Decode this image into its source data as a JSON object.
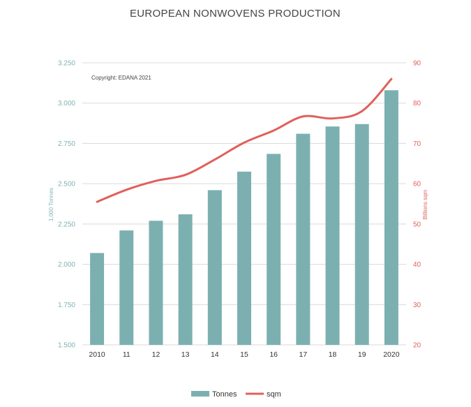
{
  "chart_data": {
    "type": "bar+line",
    "title": "EUROPEAN NONWOVENS PRODUCTION",
    "annotation": "Copyright: EDANA 2021",
    "categories": [
      "2010",
      "11",
      "12",
      "13",
      "14",
      "15",
      "16",
      "17",
      "18",
      "19",
      "2020"
    ],
    "series": [
      {
        "name": "Tonnes",
        "type": "bar",
        "axis": "left",
        "color": "#7cb0b0",
        "values": [
          2070,
          2210,
          2270,
          2310,
          2460,
          2575,
          2685,
          2810,
          2855,
          2870,
          3080
        ]
      },
      {
        "name": "sqm",
        "type": "line",
        "axis": "right",
        "color": "#e0605a",
        "values": [
          55.5,
          58.5,
          60.7,
          62.2,
          66,
          70.2,
          73.2,
          76.7,
          76.2,
          78,
          86
        ]
      }
    ],
    "left_axis": {
      "label": "1,000 Tonnes",
      "ylim": [
        1500,
        3250
      ],
      "ticks": [
        "1.500",
        "1.750",
        "2.000",
        "2.250",
        "2.500",
        "2.750",
        "3.000",
        "3.250"
      ],
      "tick_values": [
        1500,
        1750,
        2000,
        2250,
        2500,
        2750,
        3000,
        3250
      ]
    },
    "right_axis": {
      "label": "Billions sqm",
      "ylim": [
        20,
        90
      ],
      "ticks": [
        "20",
        "30",
        "40",
        "50",
        "60",
        "70",
        "80",
        "90"
      ],
      "tick_values": [
        20,
        30,
        40,
        50,
        60,
        70,
        80,
        90
      ]
    },
    "grid": true,
    "legend": {
      "position": "bottom",
      "items": [
        "Tonnes",
        "sqm"
      ]
    }
  }
}
